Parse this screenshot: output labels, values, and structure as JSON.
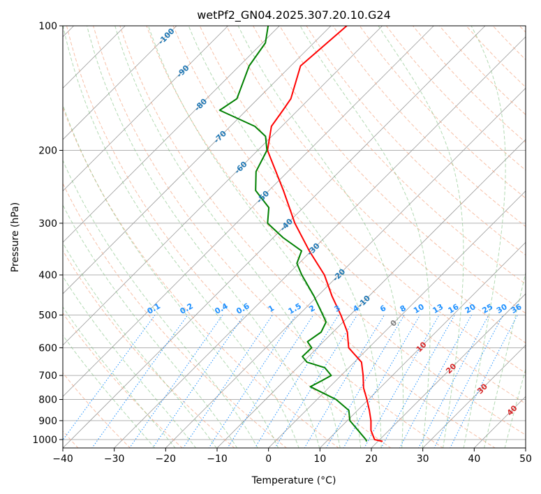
{
  "chart_data": {
    "type": "line",
    "subtype": "skew-t log-p",
    "title": "wetPf2_GN04.2025.307.20.10.G24",
    "xlabel": "Temperature (°C)",
    "ylabel": "Pressure (hPa)",
    "xlim": [
      -40,
      50
    ],
    "ylim": [
      1050,
      100
    ],
    "x_ticks": [
      "−40",
      "−30",
      "−20",
      "−10",
      "0",
      "10",
      "20",
      "30",
      "40",
      "50"
    ],
    "x_tick_values": [
      -40,
      -30,
      -20,
      -10,
      0,
      10,
      20,
      30,
      40,
      50
    ],
    "y_ticks": [
      "100",
      "200",
      "300",
      "400",
      "500",
      "600",
      "700",
      "800",
      "900",
      "1000"
    ],
    "y_tick_values": [
      100,
      200,
      300,
      400,
      500,
      600,
      700,
      800,
      900,
      1000
    ],
    "grid": true,
    "isotherm_labels": [
      {
        "text": "-100",
        "value": -100,
        "color": "#1f77b4"
      },
      {
        "text": "-90",
        "value": -90,
        "color": "#1f77b4"
      },
      {
        "text": "-80",
        "value": -80,
        "color": "#1f77b4"
      },
      {
        "text": "-70",
        "value": -70,
        "color": "#1f77b4"
      },
      {
        "text": "-60",
        "value": -60,
        "color": "#1f77b4"
      },
      {
        "text": "-50",
        "value": -50,
        "color": "#1f77b4"
      },
      {
        "text": "-40",
        "value": -40,
        "color": "#1f77b4"
      },
      {
        "text": "-30",
        "value": -30,
        "color": "#1f77b4"
      },
      {
        "text": "-20",
        "value": -20,
        "color": "#1f77b4"
      },
      {
        "text": "-10",
        "value": -10,
        "color": "#1f77b4"
      },
      {
        "text": "0",
        "value": 0,
        "color": "#808080"
      },
      {
        "text": "10",
        "value": 10,
        "color": "#d62728"
      },
      {
        "text": "20",
        "value": 20,
        "color": "#d62728"
      },
      {
        "text": "30",
        "value": 30,
        "color": "#d62728"
      },
      {
        "text": "40",
        "value": 40,
        "color": "#d62728"
      }
    ],
    "mixing_ratio_labels": [
      "0.1",
      "0.2",
      "0.4",
      "0.6",
      "1",
      "1.5",
      "2",
      "3",
      "4",
      "6",
      "8",
      "10",
      "13",
      "16",
      "20",
      "25",
      "30",
      "36"
    ],
    "mixing_ratio_values": [
      0.1,
      0.2,
      0.4,
      0.6,
      1,
      1.5,
      2,
      3,
      4,
      6,
      8,
      10,
      13,
      16,
      20,
      25,
      30,
      36
    ],
    "series": [
      {
        "name": "Temperature",
        "color": "#ff0000",
        "pressure": [
          1010,
          1000,
          950,
          900,
          850,
          800,
          750,
          700,
          650,
          600,
          550,
          500,
          450,
          400,
          350,
          300,
          250,
          200,
          175,
          160,
          150,
          125,
          100
        ],
        "values": [
          20.9,
          19.0,
          16.5,
          14.6,
          12.3,
          9.7,
          6.8,
          4.3,
          1.4,
          -3.9,
          -7.2,
          -11.8,
          -17.2,
          -22.8,
          -30.4,
          -38.6,
          -47.2,
          -58.1,
          -62.0,
          -62.9,
          -63.6,
          -68.1,
          -66.9
        ]
      },
      {
        "name": "Dewpoint",
        "color": "#008000",
        "pressure": [
          1010,
          1000,
          950,
          900,
          850,
          800,
          760,
          745,
          720,
          700,
          670,
          650,
          630,
          600,
          580,
          550,
          520,
          500,
          450,
          400,
          375,
          350,
          325,
          300,
          275,
          250,
          225,
          200,
          185,
          175,
          160,
          150,
          125,
          110,
          100
        ],
        "values": [
          17.8,
          17.3,
          14.0,
          10.5,
          8.3,
          3.7,
          -1.7,
          -3.8,
          -2.7,
          -1.9,
          -4.7,
          -9.2,
          -11.2,
          -11.1,
          -13.1,
          -12.3,
          -13.3,
          -15.3,
          -20.7,
          -27.2,
          -30.4,
          -31.9,
          -38.1,
          -43.9,
          -46.7,
          -52.6,
          -56.2,
          -58.2,
          -61.2,
          -65.2,
          -75.2,
          -74.1,
          -78.1,
          -79.4,
          -82.2
        ]
      }
    ]
  }
}
